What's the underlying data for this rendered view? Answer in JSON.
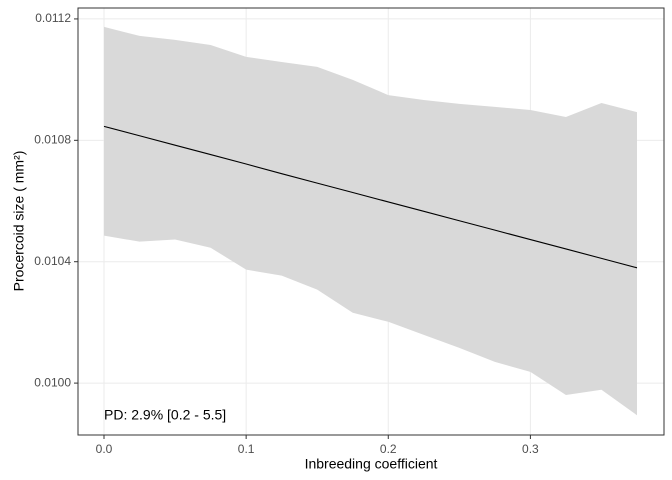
{
  "chart_data": {
    "type": "line",
    "xlabel": "Inbreeding coefficient",
    "ylabel": "Procercoid size ( mm²)",
    "annotation": "PD: 2.9% [0.2 - 5.5]",
    "x": [
      0,
      0.025,
      0.05,
      0.075,
      0.1,
      0.125,
      0.15,
      0.175,
      0.2,
      0.225,
      0.25,
      0.275,
      0.3,
      0.325,
      0.35,
      0.375
    ],
    "line": {
      "color": "#000000",
      "values": [
        0.010846,
        0.010815,
        0.010784,
        0.010753,
        0.010722,
        0.01069,
        0.010659,
        0.010628,
        0.010597,
        0.010566,
        0.010535,
        0.010504,
        0.010473,
        0.010442,
        0.010411,
        0.01038
      ]
    },
    "band": {
      "color": "#d9d9d9",
      "lower": [
        0.010486,
        0.010466,
        0.010473,
        0.010446,
        0.010374,
        0.010354,
        0.010308,
        0.010232,
        0.010202,
        0.010159,
        0.010116,
        0.01007,
        0.010037,
        0.009961,
        0.009978,
        0.009894
      ],
      "upper": [
        0.011174,
        0.011144,
        0.011131,
        0.011114,
        0.011075,
        0.011058,
        0.011042,
        0.010999,
        0.010949,
        0.010933,
        0.01092,
        0.01091,
        0.0109,
        0.010877,
        0.010923,
        0.010893
      ]
    },
    "xlim": [
      -0.0183,
      0.394
    ],
    "ylim": [
      0.009829,
      0.011236
    ],
    "xticks": [
      {
        "value": 0,
        "label": "0.0"
      },
      {
        "value": 0.1,
        "label": "0.1"
      },
      {
        "value": 0.2,
        "label": "0.2"
      },
      {
        "value": 0.3,
        "label": "0.3"
      }
    ],
    "yticks": [
      {
        "value": 0.01,
        "label": "0.0100"
      },
      0.0104,
      0.0108,
      0.0112
    ],
    "grid": true
  }
}
